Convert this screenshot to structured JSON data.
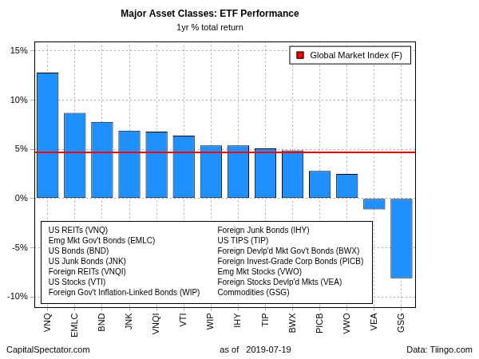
{
  "chart_data": {
    "type": "bar",
    "title": "Major Asset Classes: ETF Performance",
    "subtitle": "1yr % total return",
    "categories": [
      "VNQ",
      "EMLC",
      "BND",
      "JNK",
      "VNQI",
      "VTI",
      "WIP",
      "IHY",
      "TIP",
      "BWX",
      "PICB",
      "VWO",
      "VEA",
      "GSG"
    ],
    "values": [
      12.8,
      8.7,
      7.8,
      6.9,
      6.8,
      6.4,
      5.4,
      5.4,
      5.1,
      4.9,
      2.8,
      2.5,
      -1.1,
      -8.1
    ],
    "color": "#1e90ff",
    "ylim": [
      -11,
      16
    ],
    "yticks": [
      {
        "value": -10,
        "label": "-10%"
      },
      {
        "value": -5,
        "label": "-5%"
      },
      {
        "value": 0,
        "label": "0%"
      },
      {
        "value": 5,
        "label": "5%"
      },
      {
        "value": 10,
        "label": "10%"
      },
      {
        "value": 15,
        "label": "15%"
      }
    ],
    "grid": true,
    "legend": "top right",
    "reference_line": {
      "name": "Global Market Index (F)",
      "value": 4.7,
      "color": "#ff0000"
    },
    "description_columns": [
      [
        "US REITs (VNQ)",
        "Emg Mkt Gov't Bonds (EMLC)",
        "US Bonds (BND)",
        "US Junk Bonds (JNK)",
        "Foreign REITs (VNQI)",
        "US Stocks (VTI)",
        "Foreign Gov't Inflation-Linked Bonds (WIP)"
      ],
      [
        "Foreign Junk Bonds (IHY)",
        "US TIPS (TIP)",
        "Foreign Devlp'd Mkt Gov't Bonds (BWX)",
        "Foreign Invest-Grade Corp Bonds (PICB)",
        "Emg Mkt Stocks (VWO)",
        "Foreign Stocks Devlp'd Mkts (VEA)",
        "Commodities (GSG)"
      ]
    ],
    "footer": {
      "left": "CapitalSpectator.com",
      "center": "as of   2019-07-19",
      "right": "Data: Tiingo.com"
    }
  }
}
